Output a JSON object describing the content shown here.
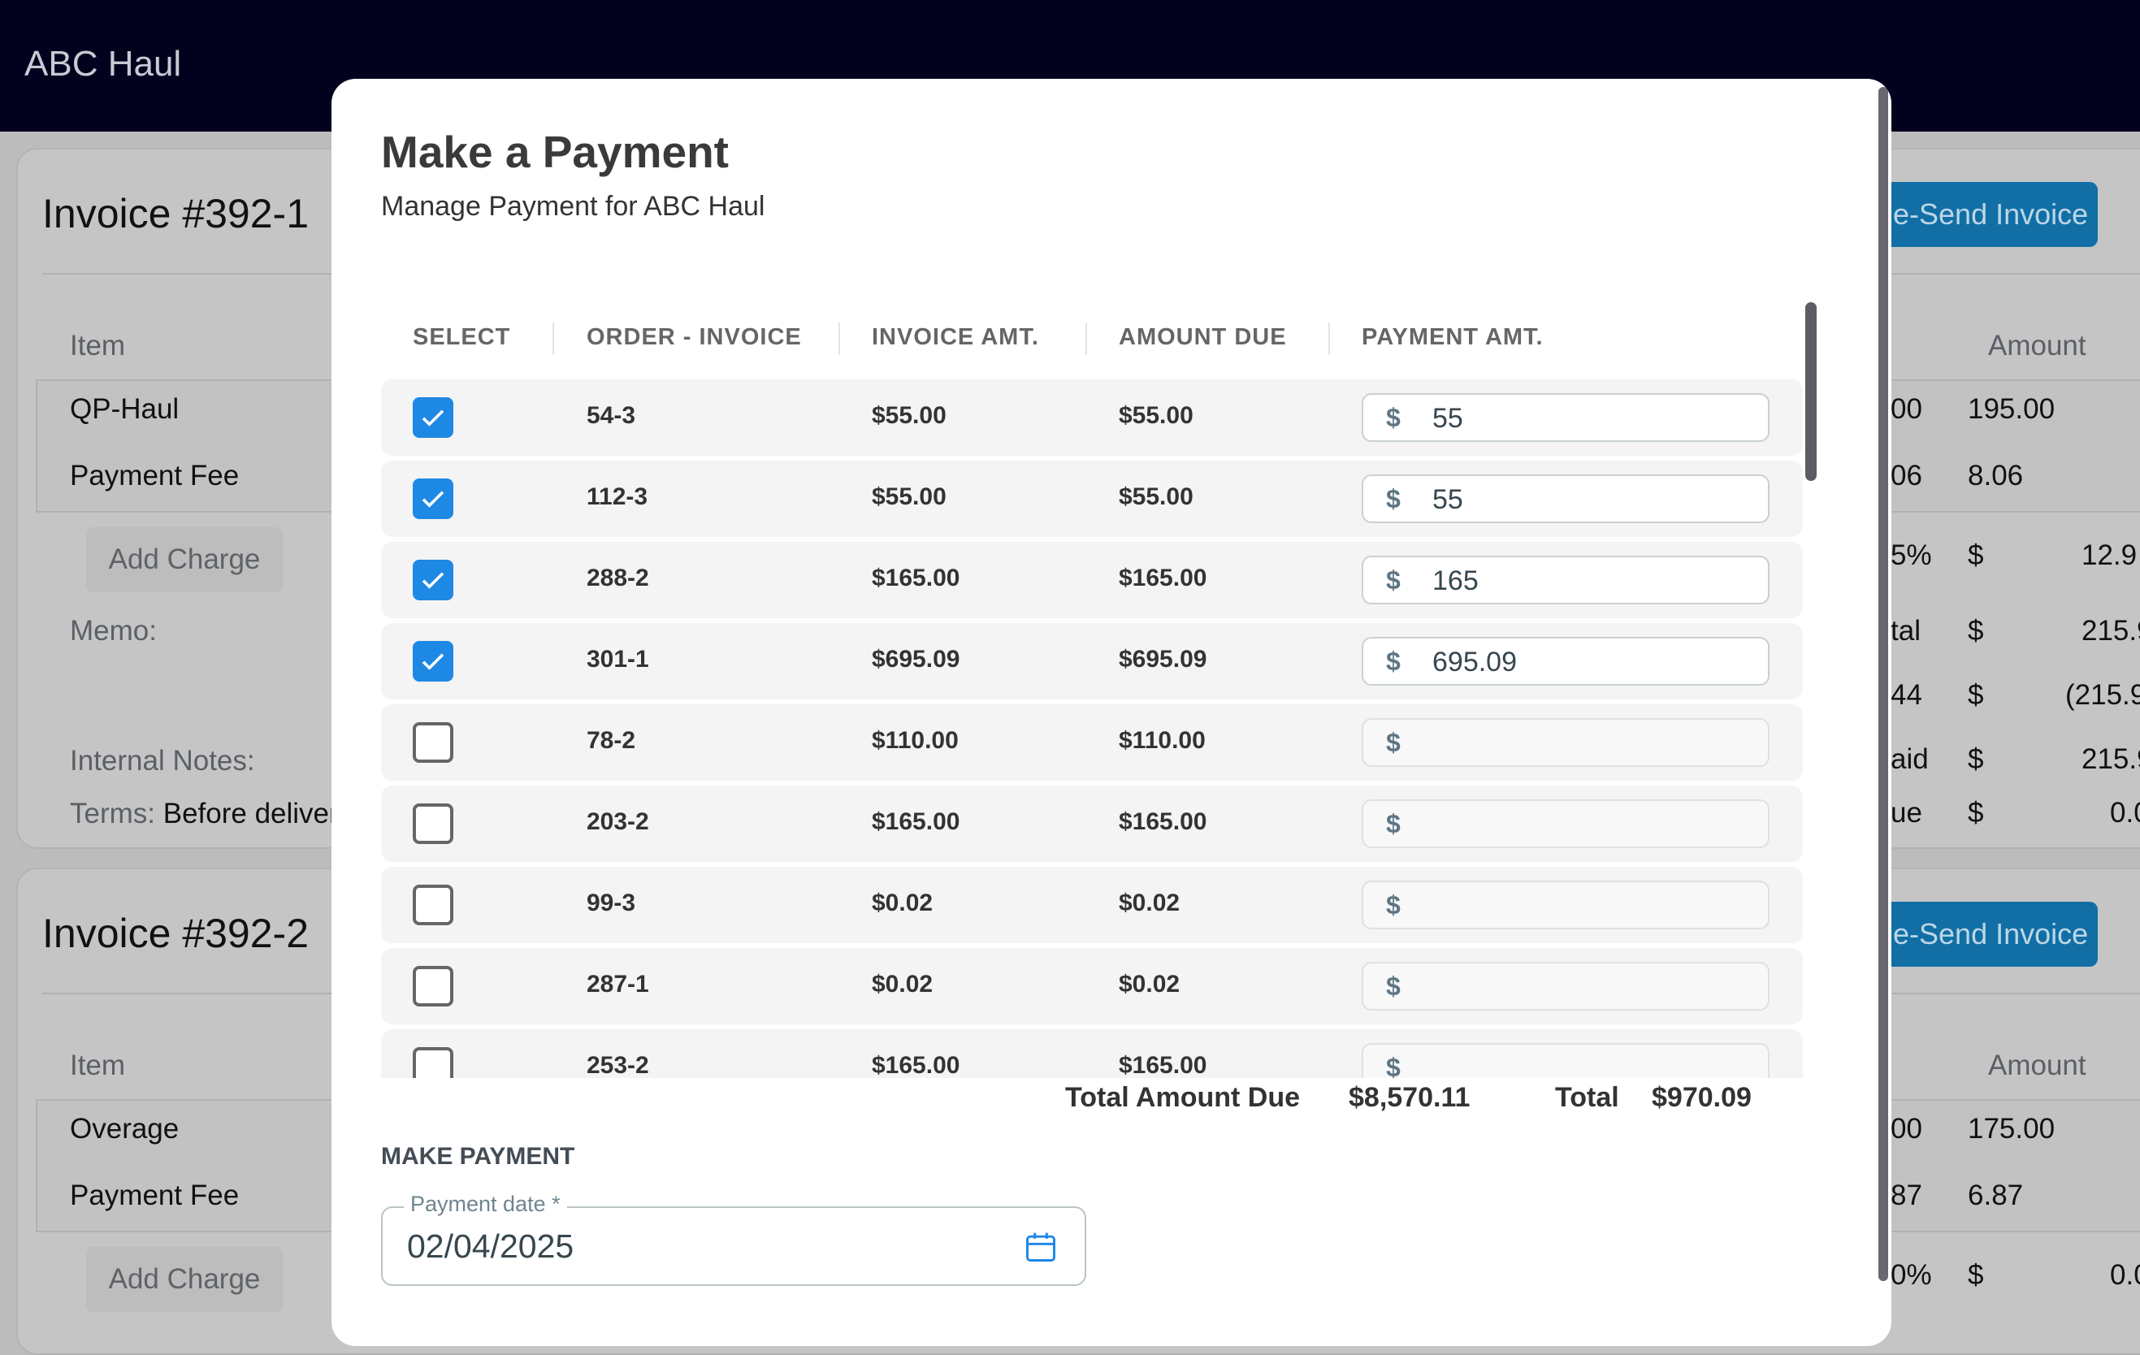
{
  "app": {
    "title": "ABC Haul"
  },
  "background": {
    "invoices": [
      {
        "title": "Invoice #392-1",
        "resend_label": "e-Send Invoice",
        "item_header": "Item",
        "amount_header": "Amount",
        "items": [
          {
            "name": "QP-Haul",
            "qty_fragment": "00",
            "amount": "195.00"
          },
          {
            "name": "Payment Fee",
            "qty_fragment": "06",
            "amount": "8.06"
          }
        ],
        "add_charge": "Add Charge",
        "memo": "Memo:",
        "internal_notes": "Internal Notes:",
        "terms_label": "Terms:",
        "terms_value": "Before deliver",
        "summary": [
          {
            "label": "5%",
            "cur": "$",
            "value": "12.9"
          },
          {
            "label": "tal",
            "cur": "$",
            "value": "215.9"
          },
          {
            "label": "44",
            "cur": "$",
            "value": "(215.9"
          },
          {
            "label": "aid",
            "cur": "$",
            "value": "215.9"
          },
          {
            "label": "ue",
            "cur": "$",
            "value": "0.0"
          }
        ]
      },
      {
        "title": "Invoice #392-2",
        "resend_label": "e-Send Invoice",
        "item_header": "Item",
        "amount_header": "Amount",
        "items": [
          {
            "name": "Overage",
            "qty_fragment": "00",
            "amount": "175.00"
          },
          {
            "name": "Payment Fee",
            "qty_fragment": "87",
            "amount": "6.87"
          }
        ],
        "add_charge": "Add Charge",
        "summary": [
          {
            "label": "0%",
            "cur": "$",
            "value": "0.0"
          }
        ]
      }
    ]
  },
  "modal": {
    "title": "Make a Payment",
    "subtitle": "Manage Payment for ABC Haul",
    "columns": [
      "SELECT",
      "ORDER - INVOICE",
      "INVOICE AMT.",
      "AMOUNT DUE",
      "PAYMENT AMT."
    ],
    "currency_symbol": "$",
    "rows": [
      {
        "checked": true,
        "order": "54-3",
        "invoice_amt": "$55.00",
        "amount_due": "$55.00",
        "payment": "55"
      },
      {
        "checked": true,
        "order": "112-3",
        "invoice_amt": "$55.00",
        "amount_due": "$55.00",
        "payment": "55"
      },
      {
        "checked": true,
        "order": "288-2",
        "invoice_amt": "$165.00",
        "amount_due": "$165.00",
        "payment": "165"
      },
      {
        "checked": true,
        "order": "301-1",
        "invoice_amt": "$695.09",
        "amount_due": "$695.09",
        "payment": "695.09"
      },
      {
        "checked": false,
        "order": "78-2",
        "invoice_amt": "$110.00",
        "amount_due": "$110.00",
        "payment": ""
      },
      {
        "checked": false,
        "order": "203-2",
        "invoice_amt": "$165.00",
        "amount_due": "$165.00",
        "payment": ""
      },
      {
        "checked": false,
        "order": "99-3",
        "invoice_amt": "$0.02",
        "amount_due": "$0.02",
        "payment": ""
      },
      {
        "checked": false,
        "order": "287-1",
        "invoice_amt": "$0.02",
        "amount_due": "$0.02",
        "payment": ""
      },
      {
        "checked": false,
        "order": "253-2",
        "invoice_amt": "$165.00",
        "amount_due": "$165.00",
        "payment": ""
      }
    ],
    "totals": {
      "amount_due_label": "Total Amount Due",
      "amount_due": "$8,570.11",
      "total_label": "Total",
      "total": "$970.09"
    },
    "make_payment": {
      "section_label": "MAKE PAYMENT",
      "date_label": "Payment date *",
      "date_value": "02/04/2025"
    }
  },
  "colors": {
    "header": "#02021f",
    "accent": "#1e88e5",
    "resend": "#116fa6"
  }
}
